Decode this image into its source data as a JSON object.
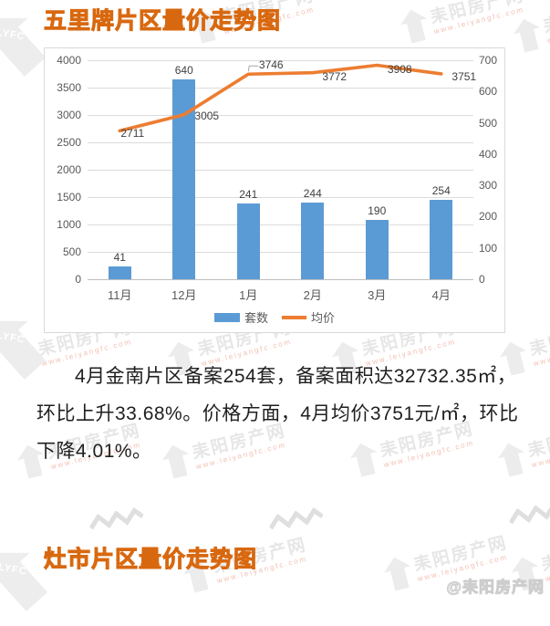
{
  "header": {
    "title": "五里牌片区量价走势图"
  },
  "footer_section": {
    "title": "灶市片区量价走势图"
  },
  "summary": {
    "text": "4月金南片区备案254套，备案面积达32732.35㎡，环比上升33.68%。价格方面，4月均价3751元/㎡，环比下降4.01%。"
  },
  "credit": {
    "badge": "@耒阳房产网"
  },
  "watermark": {
    "brand": "耒阳房产网",
    "url": "www.leiyangfc.com",
    "logo": "LYFC"
  },
  "chart_data": {
    "type": "bar",
    "subtype": "combo bar+line, dual y-axes",
    "title": "",
    "categories": [
      "11月",
      "12月",
      "1月",
      "2月",
      "3月",
      "4月"
    ],
    "series": [
      {
        "name": "套数",
        "type": "bar",
        "axis": "right",
        "color": "#5B9BD5",
        "values": [
          41,
          640,
          241,
          244,
          190,
          254
        ]
      },
      {
        "name": "均价",
        "type": "line",
        "axis": "left",
        "color": "#ED7D31",
        "values": [
          2711,
          3005,
          3746,
          3772,
          3908,
          3751
        ]
      }
    ],
    "left_axis": {
      "min": 0,
      "max": 4000,
      "step": 500
    },
    "right_axis": {
      "min": 0,
      "max": 700,
      "step": 100
    },
    "legend_position": "bottom",
    "grid": true
  }
}
